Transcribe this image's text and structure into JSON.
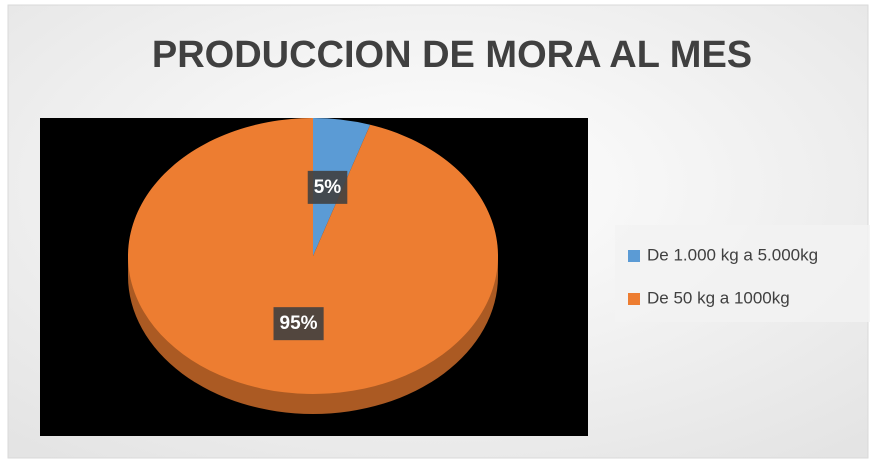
{
  "chart_data": {
    "type": "pie",
    "title": "PRODUCCION DE MORA AL MES",
    "categories": [
      "De 1.000 kg a 5.000kg",
      "De 50 kg a 1000kg"
    ],
    "values": [
      5,
      95
    ],
    "value_labels": [
      "5%",
      "95%"
    ],
    "colors": [
      "#5b9bd5",
      "#ed7d31"
    ],
    "legend": "right"
  }
}
